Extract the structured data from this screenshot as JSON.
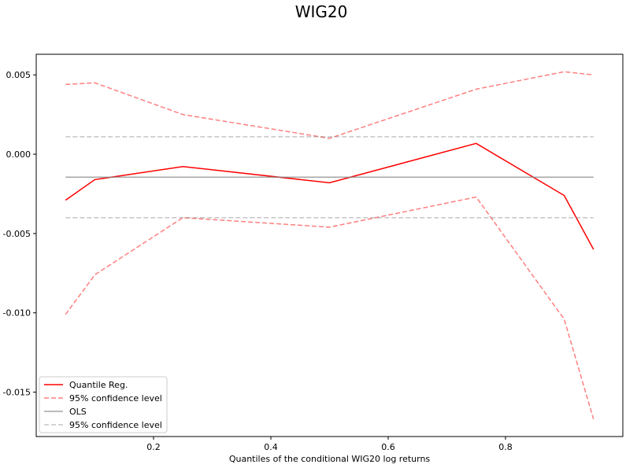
{
  "chart_data": {
    "type": "line",
    "title": "WIG20",
    "xlabel": "Quantiles of the conditional WIG20 log returns",
    "ylabel": "",
    "xlim": [
      0.0,
      1.0
    ],
    "ylim": [
      -0.0178,
      0.0063
    ],
    "x_ticks": [
      0.2,
      0.4,
      0.6,
      0.8
    ],
    "x_tick_labels": [
      "0.2",
      "0.4",
      "0.6",
      "0.8"
    ],
    "y_ticks": [
      0.005,
      0.0,
      -0.005,
      -0.01,
      -0.015
    ],
    "y_tick_labels": [
      "0.005",
      "0.000",
      "-0.005",
      "-0.010",
      "-0.015"
    ],
    "grid": false,
    "legend_position": "lower-left",
    "x": [
      0.05,
      0.1,
      0.25,
      0.5,
      0.75,
      0.9,
      0.95
    ],
    "series": [
      {
        "name": "Quantile Reg.",
        "color": "#ff0000",
        "style": "solid",
        "opacity": 1.0,
        "values": [
          -0.0029,
          -0.0016,
          -0.00078,
          -0.0018,
          0.00068,
          -0.0026,
          -0.006
        ]
      },
      {
        "name": "95% confidence level",
        "color": "#ff0000",
        "style": "dashed",
        "opacity": 0.5,
        "group": "qr-ci",
        "values": [
          0.0044,
          0.0045,
          0.0025,
          0.001,
          0.0041,
          0.0052,
          0.005
        ]
      },
      {
        "name": "",
        "color": "#ff0000",
        "style": "dashed",
        "opacity": 0.5,
        "group": "qr-ci",
        "values": [
          -0.0101,
          -0.0076,
          -0.004,
          -0.0046,
          -0.0027,
          -0.0104,
          -0.0167
        ]
      },
      {
        "name": "OLS",
        "color": "#808080",
        "style": "solid",
        "opacity": 0.7,
        "values": [
          -0.00145,
          -0.00145,
          -0.00145,
          -0.00145,
          -0.00145,
          -0.00145,
          -0.00145
        ]
      },
      {
        "name": "95% confidence level",
        "color": "#808080",
        "style": "dashed",
        "opacity": 0.45,
        "group": "ols-ci",
        "values": [
          0.0011,
          0.0011,
          0.0011,
          0.0011,
          0.0011,
          0.0011,
          0.0011
        ]
      },
      {
        "name": "",
        "color": "#808080",
        "style": "dashed",
        "opacity": 0.45,
        "group": "ols-ci",
        "values": [
          -0.004,
          -0.004,
          -0.004,
          -0.004,
          -0.004,
          -0.004,
          -0.004
        ]
      }
    ],
    "legend": [
      {
        "label": "Quantile Reg.",
        "color": "#ff0000",
        "style": "solid",
        "opacity": 1.0
      },
      {
        "label": "95% confidence level",
        "color": "#ff0000",
        "style": "dashed",
        "opacity": 0.5
      },
      {
        "label": "OLS",
        "color": "#808080",
        "style": "solid",
        "opacity": 0.7
      },
      {
        "label": "95% confidence level",
        "color": "#808080",
        "style": "dashed",
        "opacity": 0.45
      }
    ]
  }
}
